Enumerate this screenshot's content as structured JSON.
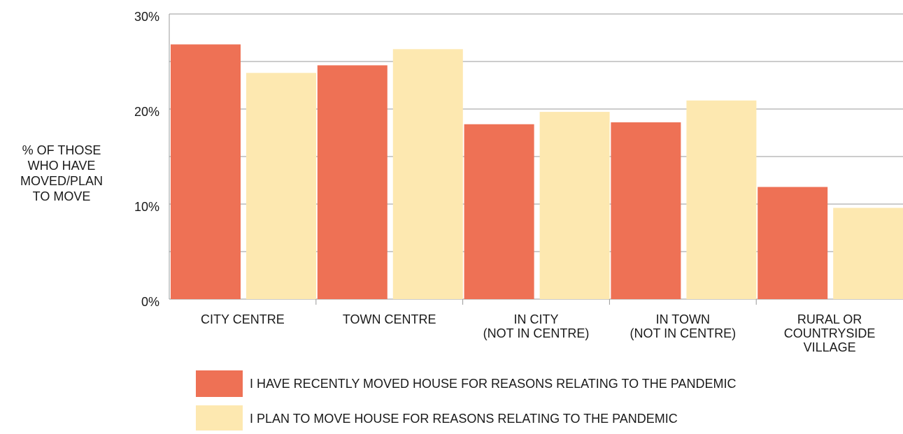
{
  "chart_data": {
    "type": "bar",
    "y_label": [
      "% OF THOSE",
      "WHO HAVE",
      "MOVED/PLAN",
      "TO MOVE"
    ],
    "categories": [
      [
        "CITY CENTRE"
      ],
      [
        "TOWN CENTRE"
      ],
      [
        "IN CITY",
        "(NOT IN CENTRE)"
      ],
      [
        "IN TOWN",
        "(NOT IN CENTRE)"
      ],
      [
        "RURAL OR",
        "COUNTRYSIDE",
        "VILLAGE"
      ]
    ],
    "series": [
      {
        "name": "I HAVE RECENTLY MOVED HOUSE FOR REASONS RELATING TO THE PANDEMIC",
        "color": "#ee7155",
        "values": [
          26.8,
          24.6,
          18.4,
          18.6,
          11.8
        ]
      },
      {
        "name": "I PLAN TO MOVE HOUSE FOR REASONS RELATING TO THE PANDEMIC",
        "color": "#fde8b0",
        "values": [
          23.8,
          26.3,
          19.7,
          20.9,
          9.6
        ]
      }
    ],
    "ylim": [
      0,
      30
    ],
    "yticks": [
      {
        "value": 0,
        "label": "0%"
      },
      {
        "value": 10,
        "label": "10%"
      },
      {
        "value": 20,
        "label": "20%"
      },
      {
        "value": 30,
        "label": "30%"
      }
    ],
    "minor_yticks": [
      5,
      15,
      25
    ],
    "grid": true
  }
}
